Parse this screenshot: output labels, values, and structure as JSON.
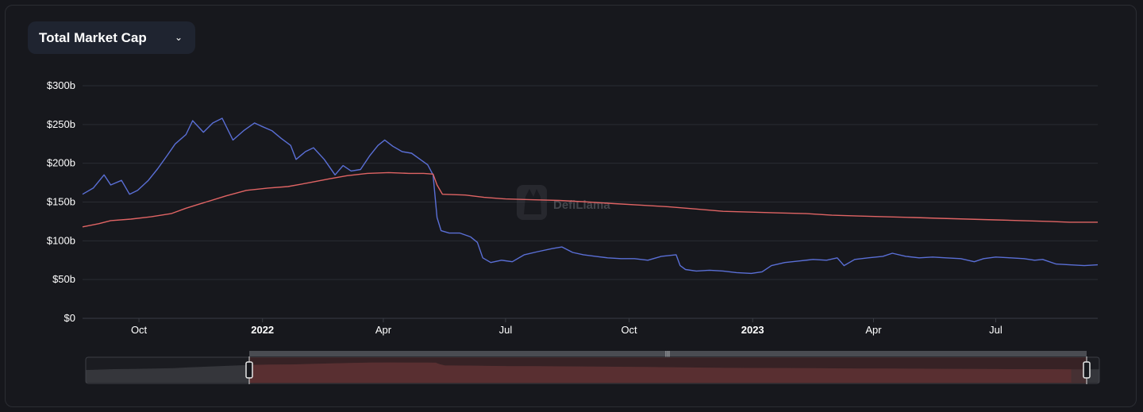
{
  "metric_selector": {
    "label": "Total Market Cap",
    "icon": "chevron-down-icon"
  },
  "watermark": "DefiLlama",
  "colors": {
    "series_a": "#5a6fd6",
    "series_b": "#e06464",
    "grid": "#2a2c33",
    "background": "#17181d"
  },
  "chart_data": {
    "type": "line",
    "title": "Total Market Cap",
    "xlabel": "",
    "ylabel": "",
    "ylim": [
      0,
      300
    ],
    "y_unit": "b",
    "xlim": [
      "2021-08-20",
      "2023-09-15"
    ],
    "yticks": [
      "$0",
      "$50b",
      "$100b",
      "$150b",
      "$200b",
      "$250b",
      "$300b"
    ],
    "xticks": [
      {
        "date": "2021-10-01",
        "label": "Oct",
        "bold": false
      },
      {
        "date": "2022-01-01",
        "label": "2022",
        "bold": true
      },
      {
        "date": "2022-04-01",
        "label": "Apr",
        "bold": false
      },
      {
        "date": "2022-07-01",
        "label": "Jul",
        "bold": false
      },
      {
        "date": "2022-10-01",
        "label": "Oct",
        "bold": false
      },
      {
        "date": "2023-01-01",
        "label": "2023",
        "bold": true
      },
      {
        "date": "2023-04-01",
        "label": "Apr",
        "bold": false
      },
      {
        "date": "2023-07-01",
        "label": "Jul",
        "bold": false
      }
    ],
    "grid": true,
    "series": [
      {
        "color": "#5a6fd6",
        "points": [
          [
            "2021-08-20",
            160
          ],
          [
            "2021-08-28",
            168
          ],
          [
            "2021-09-05",
            185
          ],
          [
            "2021-09-10",
            172
          ],
          [
            "2021-09-18",
            178
          ],
          [
            "2021-09-24",
            160
          ],
          [
            "2021-09-30",
            165
          ],
          [
            "2021-10-08",
            178
          ],
          [
            "2021-10-15",
            193
          ],
          [
            "2021-10-22",
            210
          ],
          [
            "2021-10-28",
            225
          ],
          [
            "2021-11-05",
            237
          ],
          [
            "2021-11-10",
            255
          ],
          [
            "2021-11-18",
            240
          ],
          [
            "2021-11-25",
            252
          ],
          [
            "2021-12-02",
            258
          ],
          [
            "2021-12-10",
            230
          ],
          [
            "2021-12-18",
            242
          ],
          [
            "2021-12-26",
            252
          ],
          [
            "2021-12-31",
            248
          ],
          [
            "2022-01-08",
            242
          ],
          [
            "2022-01-15",
            232
          ],
          [
            "2022-01-22",
            223
          ],
          [
            "2022-01-26",
            205
          ],
          [
            "2022-02-02",
            215
          ],
          [
            "2022-02-08",
            220
          ],
          [
            "2022-02-16",
            205
          ],
          [
            "2022-02-24",
            185
          ],
          [
            "2022-03-02",
            197
          ],
          [
            "2022-03-08",
            190
          ],
          [
            "2022-03-15",
            192
          ],
          [
            "2022-03-22",
            210
          ],
          [
            "2022-03-28",
            223
          ],
          [
            "2022-04-02",
            230
          ],
          [
            "2022-04-08",
            222
          ],
          [
            "2022-04-15",
            215
          ],
          [
            "2022-04-22",
            213
          ],
          [
            "2022-04-30",
            203
          ],
          [
            "2022-05-04",
            198
          ],
          [
            "2022-05-08",
            185
          ],
          [
            "2022-05-11",
            130
          ],
          [
            "2022-05-14",
            113
          ],
          [
            "2022-05-20",
            110
          ],
          [
            "2022-05-28",
            110
          ],
          [
            "2022-06-05",
            105
          ],
          [
            "2022-06-10",
            98
          ],
          [
            "2022-06-14",
            78
          ],
          [
            "2022-06-20",
            72
          ],
          [
            "2022-06-28",
            75
          ],
          [
            "2022-07-06",
            73
          ],
          [
            "2022-07-15",
            82
          ],
          [
            "2022-07-25",
            86
          ],
          [
            "2022-08-05",
            90
          ],
          [
            "2022-08-12",
            92
          ],
          [
            "2022-08-20",
            85
          ],
          [
            "2022-08-28",
            82
          ],
          [
            "2022-09-06",
            80
          ],
          [
            "2022-09-15",
            78
          ],
          [
            "2022-09-25",
            77
          ],
          [
            "2022-10-05",
            77
          ],
          [
            "2022-10-15",
            75
          ],
          [
            "2022-10-25",
            80
          ],
          [
            "2022-11-05",
            82
          ],
          [
            "2022-11-08",
            68
          ],
          [
            "2022-11-12",
            63
          ],
          [
            "2022-11-20",
            61
          ],
          [
            "2022-11-30",
            62
          ],
          [
            "2022-12-10",
            61
          ],
          [
            "2022-12-20",
            59
          ],
          [
            "2022-12-31",
            58
          ],
          [
            "2023-01-08",
            60
          ],
          [
            "2023-01-15",
            68
          ],
          [
            "2023-01-25",
            72
          ],
          [
            "2023-02-05",
            74
          ],
          [
            "2023-02-15",
            76
          ],
          [
            "2023-02-25",
            75
          ],
          [
            "2023-03-05",
            78
          ],
          [
            "2023-03-10",
            68
          ],
          [
            "2023-03-18",
            76
          ],
          [
            "2023-03-28",
            78
          ],
          [
            "2023-04-08",
            80
          ],
          [
            "2023-04-15",
            84
          ],
          [
            "2023-04-25",
            80
          ],
          [
            "2023-05-05",
            78
          ],
          [
            "2023-05-15",
            79
          ],
          [
            "2023-05-25",
            78
          ],
          [
            "2023-06-05",
            77
          ],
          [
            "2023-06-15",
            73
          ],
          [
            "2023-06-22",
            77
          ],
          [
            "2023-07-01",
            79
          ],
          [
            "2023-07-12",
            78
          ],
          [
            "2023-07-22",
            77
          ],
          [
            "2023-07-30",
            75
          ],
          [
            "2023-08-05",
            76
          ],
          [
            "2023-08-15",
            70
          ],
          [
            "2023-08-25",
            69
          ],
          [
            "2023-09-05",
            68
          ],
          [
            "2023-09-15",
            69
          ]
        ]
      },
      {
        "color": "#e06464",
        "points": [
          [
            "2021-08-20",
            118
          ],
          [
            "2021-09-01",
            122
          ],
          [
            "2021-09-10",
            126
          ],
          [
            "2021-09-25",
            128
          ],
          [
            "2021-10-10",
            131
          ],
          [
            "2021-10-25",
            135
          ],
          [
            "2021-11-05",
            142
          ],
          [
            "2021-11-20",
            150
          ],
          [
            "2021-12-05",
            158
          ],
          [
            "2021-12-20",
            165
          ],
          [
            "2022-01-05",
            168
          ],
          [
            "2022-01-20",
            170
          ],
          [
            "2022-02-05",
            175
          ],
          [
            "2022-02-20",
            180
          ],
          [
            "2022-03-05",
            184
          ],
          [
            "2022-03-20",
            187
          ],
          [
            "2022-04-05",
            188
          ],
          [
            "2022-04-20",
            187
          ],
          [
            "2022-05-01",
            187
          ],
          [
            "2022-05-08",
            186
          ],
          [
            "2022-05-11",
            172
          ],
          [
            "2022-05-15",
            160
          ],
          [
            "2022-06-01",
            159
          ],
          [
            "2022-06-15",
            156
          ],
          [
            "2022-07-01",
            154
          ],
          [
            "2022-07-20",
            153
          ],
          [
            "2022-08-10",
            152
          ],
          [
            "2022-09-01",
            150
          ],
          [
            "2022-09-20",
            148
          ],
          [
            "2022-10-10",
            146
          ],
          [
            "2022-10-30",
            144
          ],
          [
            "2022-11-20",
            141
          ],
          [
            "2022-12-10",
            138
          ],
          [
            "2022-12-31",
            137
          ],
          [
            "2023-01-20",
            136
          ],
          [
            "2023-02-10",
            135
          ],
          [
            "2023-03-01",
            133
          ],
          [
            "2023-03-20",
            132
          ],
          [
            "2023-04-10",
            131
          ],
          [
            "2023-05-01",
            130
          ],
          [
            "2023-05-20",
            129
          ],
          [
            "2023-06-10",
            128
          ],
          [
            "2023-07-01",
            127
          ],
          [
            "2023-07-20",
            126
          ],
          [
            "2023-08-10",
            125
          ],
          [
            "2023-08-25",
            124
          ],
          [
            "2023-09-15",
            124
          ]
        ]
      }
    ]
  }
}
